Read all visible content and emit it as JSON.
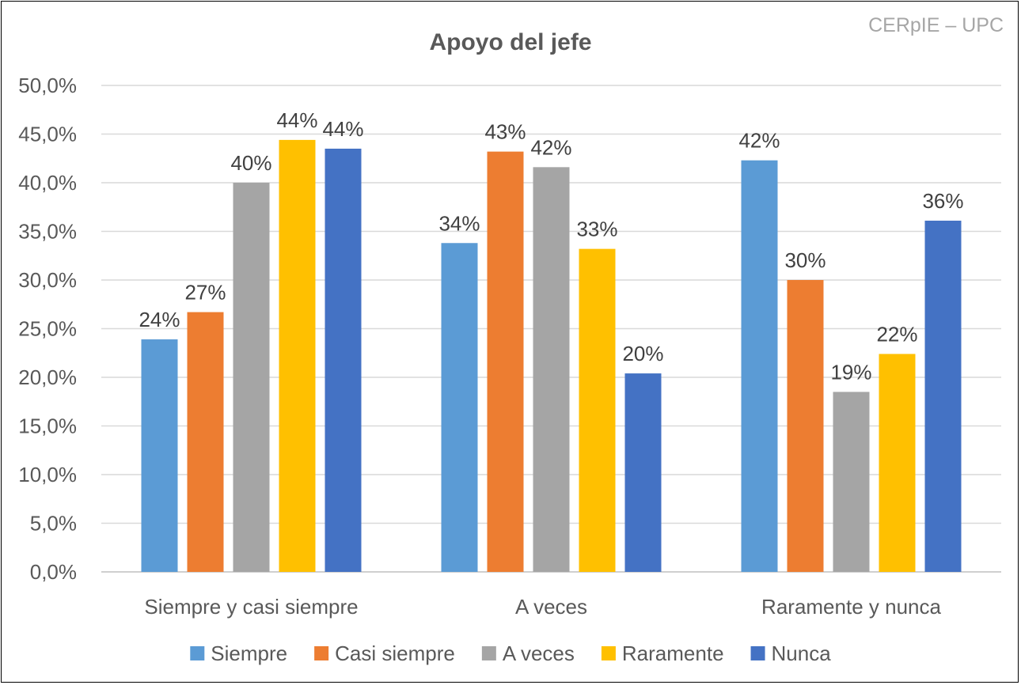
{
  "chart_data": {
    "type": "bar",
    "title": "Apoyo del jefe",
    "watermark": "CERpIE – UPC",
    "categories": [
      "Siempre y casi siempre",
      "A veces",
      "Raramente y nunca"
    ],
    "series": [
      {
        "name": "Siempre",
        "color": "#5B9BD5",
        "values": [
          23.9,
          33.8,
          42.3
        ],
        "labels": [
          "24%",
          "34%",
          "42%"
        ]
      },
      {
        "name": "Casi siempre",
        "color": "#ED7D31",
        "values": [
          26.7,
          43.2,
          30.0
        ],
        "labels": [
          "27%",
          "43%",
          "30%"
        ]
      },
      {
        "name": "A veces",
        "color": "#A5A5A5",
        "values": [
          40.0,
          41.6,
          18.5
        ],
        "labels": [
          "40%",
          "42%",
          "19%"
        ]
      },
      {
        "name": "Raramente",
        "color": "#FFC000",
        "values": [
          44.4,
          33.2,
          22.4
        ],
        "labels": [
          "44%",
          "33%",
          "22%"
        ]
      },
      {
        "name": "Nunca",
        "color": "#4472C4",
        "values": [
          43.5,
          20.4,
          36.1
        ],
        "labels": [
          "44%",
          "20%",
          "36%"
        ]
      }
    ],
    "ylim": [
      0,
      50
    ],
    "yticks": [
      "0,0%",
      "5,0%",
      "10,0%",
      "15,0%",
      "20,0%",
      "25,0%",
      "30,0%",
      "35,0%",
      "40,0%",
      "45,0%",
      "50,0%"
    ],
    "xlabel": "",
    "ylabel": "",
    "grid": true,
    "legend_position": "bottom"
  }
}
